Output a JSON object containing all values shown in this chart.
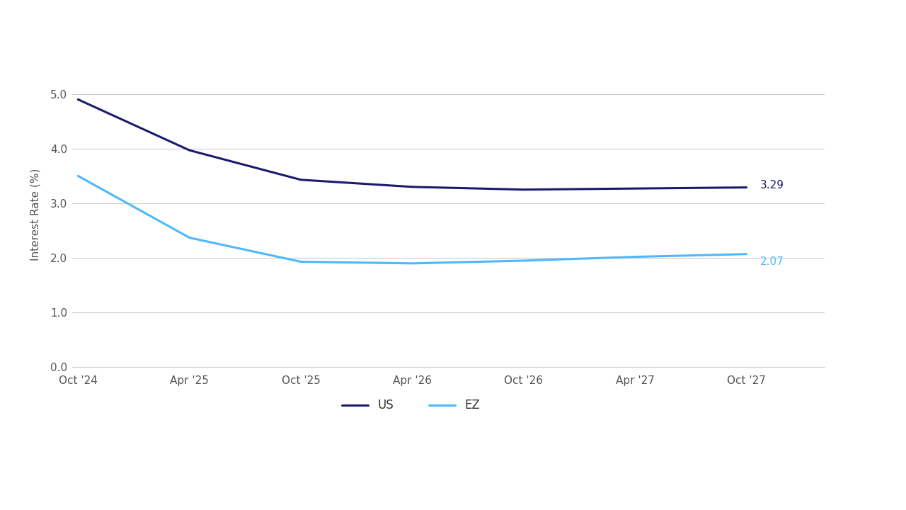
{
  "xlabel": "",
  "ylabel": "Interest Rate (%)",
  "x_labels": [
    "Oct '24",
    "Apr '25",
    "Oct '25",
    "Apr '26",
    "Oct '26",
    "Apr '27",
    "Oct '27"
  ],
  "x_values": [
    0,
    1,
    2,
    3,
    4,
    5,
    6
  ],
  "us_values": [
    4.9,
    3.97,
    3.43,
    3.3,
    3.25,
    3.27,
    3.29
  ],
  "ez_values": [
    3.5,
    2.37,
    1.93,
    1.9,
    1.95,
    2.02,
    2.07
  ],
  "us_color": "#1a1a6e",
  "ez_color": "#4db8ff",
  "us_label": "US",
  "ez_label": "EZ",
  "us_end_value": "3.29",
  "ez_end_value": "2.07",
  "us_annotation_color": "#1a1a6e",
  "ez_annotation_color": "#4db8ff",
  "ylim": [
    0.0,
    5.6
  ],
  "yticks": [
    0.0,
    1.0,
    2.0,
    3.0,
    4.0,
    5.0
  ],
  "background_color": "#ffffff",
  "grid_color": "#cccccc",
  "line_width": 2.2
}
